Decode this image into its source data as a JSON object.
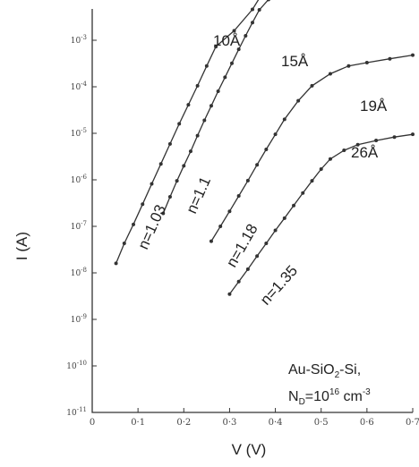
{
  "chart_data": {
    "type": "scatter",
    "xlabel": "V (V)",
    "ylabel": "I (A)",
    "xlim": [
      0,
      0.7
    ],
    "ylim_log10": [
      -11,
      -2.6
    ],
    "yscale": "log",
    "x_ticks": [
      "0",
      "0·1",
      "0·2",
      "0·3",
      "0·4",
      "0·5",
      "0·6",
      "0·7"
    ],
    "y_ticks": [
      {
        "base": "10",
        "exp": "-3"
      },
      {
        "base": "10",
        "exp": "-4"
      },
      {
        "base": "10",
        "exp": "-5"
      },
      {
        "base": "10",
        "exp": "-6"
      },
      {
        "base": "10",
        "exp": "-7"
      },
      {
        "base": "10",
        "exp": "-8"
      },
      {
        "base": "10",
        "exp": "-9"
      },
      {
        "base": "10",
        "exp": "-10"
      },
      {
        "base": "10",
        "exp": "-11"
      }
    ],
    "series": [
      {
        "name": "10Å",
        "ideality": "n=1.03",
        "points": [
          [
            0.052,
            1.6e-08
          ],
          [
            0.07,
            4.3e-08
          ],
          [
            0.09,
            1.1e-07
          ],
          [
            0.11,
            3e-07
          ],
          [
            0.13,
            8.2e-07
          ],
          [
            0.15,
            2.2e-06
          ],
          [
            0.17,
            5.9e-06
          ],
          [
            0.19,
            1.6e-05
          ],
          [
            0.21,
            4.1e-05
          ],
          [
            0.23,
            0.000105
          ],
          [
            0.25,
            0.00028
          ],
          [
            0.27,
            0.00073
          ],
          [
            0.31,
            0.0016
          ],
          [
            0.35,
            0.0046
          ],
          [
            0.365,
            0.008
          ]
        ]
      },
      {
        "name": "15Å",
        "ideality": "n=1.1",
        "points": [
          [
            0.155,
            1.9e-07
          ],
          [
            0.17,
            4.3e-07
          ],
          [
            0.185,
            9.5e-07
          ],
          [
            0.2,
            2e-06
          ],
          [
            0.215,
            4.1e-06
          ],
          [
            0.23,
            8.9e-06
          ],
          [
            0.245,
            1.9e-05
          ],
          [
            0.26,
            3.9e-05
          ],
          [
            0.275,
            8e-05
          ],
          [
            0.29,
            0.00016
          ],
          [
            0.305,
            0.00032
          ],
          [
            0.32,
            0.00064
          ],
          [
            0.335,
            0.00125
          ],
          [
            0.35,
            0.0024
          ],
          [
            0.365,
            0.0045
          ],
          [
            0.385,
            0.0075
          ],
          [
            0.405,
            0.0095
          ]
        ]
      },
      {
        "name": "19Å",
        "ideality": "n=1.18",
        "points": [
          [
            0.26,
            4.8e-08
          ],
          [
            0.28,
            1e-07
          ],
          [
            0.3,
            2.1e-07
          ],
          [
            0.32,
            4.5e-07
          ],
          [
            0.34,
            9.6e-07
          ],
          [
            0.36,
            2.1e-06
          ],
          [
            0.38,
            4.5e-06
          ],
          [
            0.4,
            9.5e-06
          ],
          [
            0.42,
            2e-05
          ],
          [
            0.45,
            5e-05
          ],
          [
            0.48,
            0.000105
          ],
          [
            0.52,
            0.00019
          ],
          [
            0.56,
            0.00028
          ],
          [
            0.6,
            0.00033
          ],
          [
            0.65,
            0.0004
          ],
          [
            0.7,
            0.00048
          ]
        ]
      },
      {
        "name": "26Å",
        "ideality": "n=1.35",
        "points": [
          [
            0.3,
            3.5e-09
          ],
          [
            0.32,
            6.5e-09
          ],
          [
            0.34,
            1.2e-08
          ],
          [
            0.36,
            2.3e-08
          ],
          [
            0.38,
            4.3e-08
          ],
          [
            0.4,
            8.2e-08
          ],
          [
            0.42,
            1.5e-07
          ],
          [
            0.44,
            2.8e-07
          ],
          [
            0.46,
            5.2e-07
          ],
          [
            0.48,
            9.5e-07
          ],
          [
            0.5,
            1.7e-06
          ],
          [
            0.52,
            2.8e-06
          ],
          [
            0.55,
            4.3e-06
          ],
          [
            0.58,
            5.7e-06
          ],
          [
            0.62,
            7e-06
          ],
          [
            0.66,
            8.3e-06
          ],
          [
            0.7,
            9.5e-06
          ]
        ]
      }
    ],
    "annotation": {
      "line1_pre": "Au-SiO",
      "line1_sub": "2",
      "line1_post": "-Si,",
      "line2_pre": "N",
      "line2_sub": "D",
      "line2_mid": "=10",
      "line2_sup": "16",
      "line2_post": " cm",
      "line2_sup2": "-3"
    }
  }
}
